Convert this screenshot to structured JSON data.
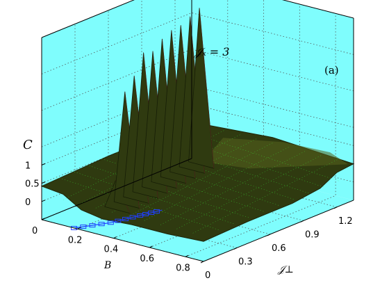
{
  "chart_data": {
    "type": "surface3d",
    "title": "",
    "panel_label": "(a)",
    "annotation": "𝒥ₓ = 3",
    "xlabel": "B",
    "ylabel": "𝒥⊥",
    "zlabel": "C",
    "x_ticks": [
      "0",
      "0.2",
      "0.4",
      "0.6",
      "0.8"
    ],
    "y_ticks": [
      "0",
      "0.3",
      "0.6",
      "0.9",
      "1.2"
    ],
    "z_ticks": [
      "0",
      "0.5",
      "1"
    ],
    "xlim": [
      0,
      0.9
    ],
    "ylim": [
      0,
      1.35
    ],
    "zlim": [
      -0.5,
      4.5
    ],
    "plateau_value": 0.5,
    "peaks": [
      {
        "b": 0.38,
        "j": 0.05,
        "c": 1.0
      },
      {
        "b": 0.37,
        "j": 0.15,
        "c": 3.3
      },
      {
        "b": 0.36,
        "j": 0.25,
        "c": 3.6
      },
      {
        "b": 0.35,
        "j": 0.35,
        "c": 4.1
      },
      {
        "b": 0.34,
        "j": 0.45,
        "c": 4.0
      },
      {
        "b": 0.33,
        "j": 0.55,
        "c": 4.2
      },
      {
        "b": 0.32,
        "j": 0.65,
        "c": 4.3
      },
      {
        "b": 0.31,
        "j": 0.75,
        "c": 4.3
      },
      {
        "b": 0.3,
        "j": 0.85,
        "c": 4.4
      },
      {
        "b": 0.29,
        "j": 0.95,
        "c": 4.5
      }
    ],
    "critical_line": [
      {
        "b": 0.18,
        "j": 0.0
      },
      {
        "b": 0.26,
        "j": 0.2
      },
      {
        "b": 0.3,
        "j": 0.4
      },
      {
        "b": 0.33,
        "j": 0.55
      }
    ],
    "colors": {
      "pane": "#7ffdfd",
      "surface": "#2f3a10",
      "surface_light": "#56631e",
      "mesh": "#39ff39",
      "critical_line": "#1f3fff"
    },
    "grid": true
  }
}
